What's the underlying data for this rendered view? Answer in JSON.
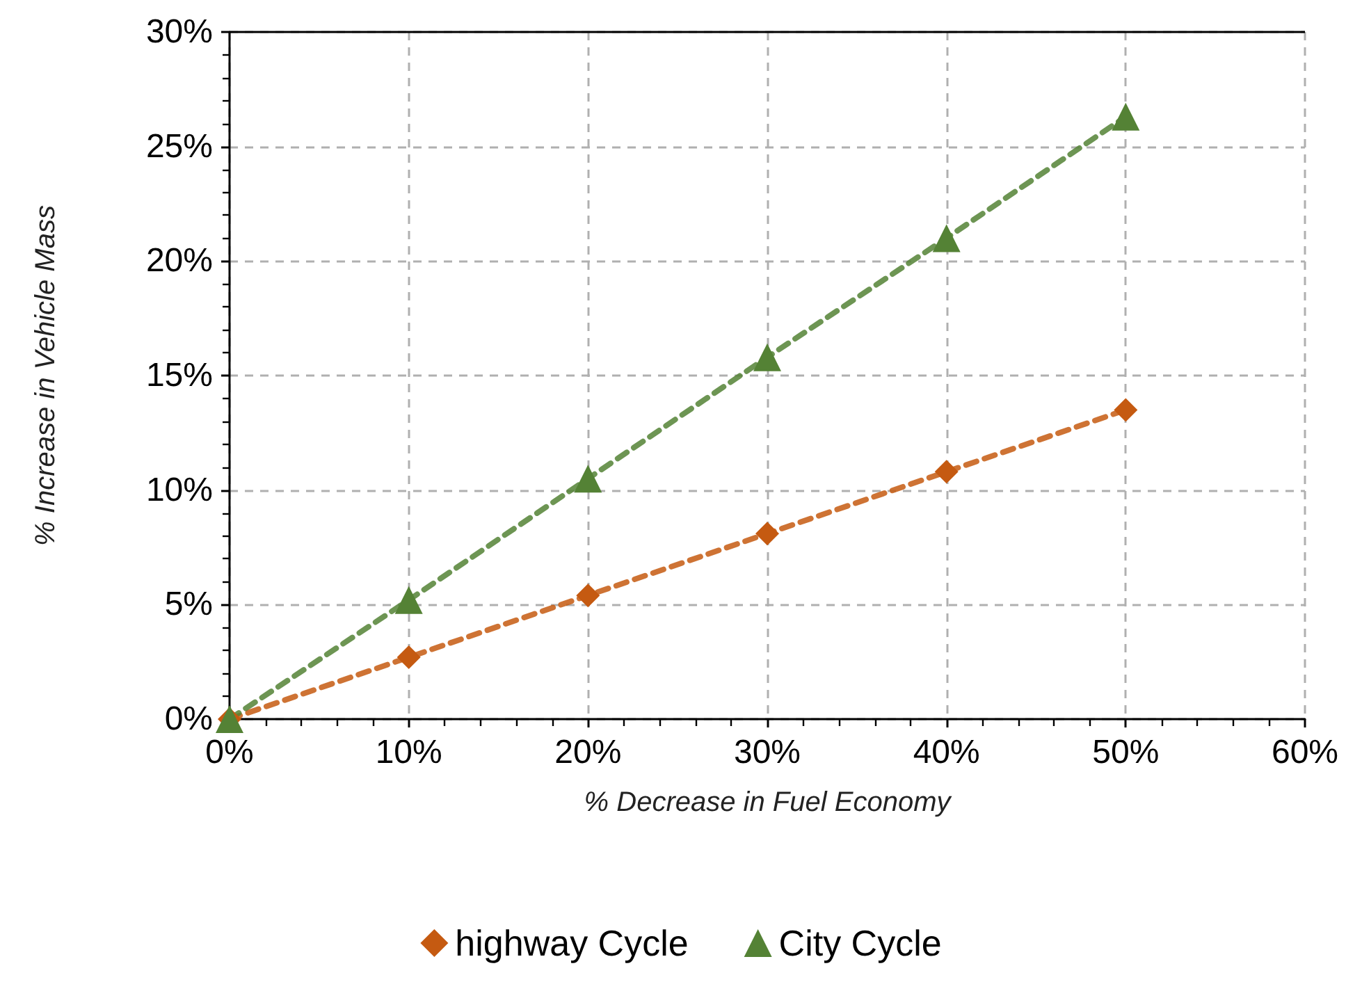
{
  "chart_data": {
    "type": "line",
    "xlabel": "% Decrease in Fuel Economy",
    "ylabel": "% Increase in Vehicle Mass",
    "x": [
      0,
      10,
      20,
      30,
      40,
      50
    ],
    "series": [
      {
        "name": "highway Cycle",
        "color": "#c55a11",
        "marker": "diamond",
        "values": [
          0,
          2.7,
          5.4,
          8.1,
          10.8,
          13.5
        ]
      },
      {
        "name": "City Cycle",
        "color": "#548235",
        "marker": "triangle",
        "values": [
          0,
          5.2,
          10.5,
          15.8,
          21.0,
          26.3
        ]
      }
    ],
    "xlim": [
      0,
      60
    ],
    "xticks": [
      {
        "value": 0,
        "label": "0%"
      },
      {
        "value": 10,
        "label": "10%"
      },
      {
        "value": 20,
        "label": "20%"
      },
      {
        "value": 30,
        "label": "30%"
      },
      {
        "value": 40,
        "label": "40%"
      },
      {
        "value": 50,
        "label": "50%"
      },
      {
        "value": 60,
        "label": "60%"
      }
    ],
    "ylim": [
      0,
      30
    ],
    "yticks": [
      {
        "value": 0,
        "label": "0%"
      },
      {
        "value": 5,
        "label": "5%"
      },
      {
        "value": 10,
        "label": "10%"
      },
      {
        "value": 15,
        "label": "15%"
      },
      {
        "value": 20,
        "label": "20%"
      },
      {
        "value": 25,
        "label": "25%"
      },
      {
        "value": 30,
        "label": "30%"
      }
    ],
    "grid": true,
    "legend": "bottom",
    "line_style": "dashed"
  }
}
